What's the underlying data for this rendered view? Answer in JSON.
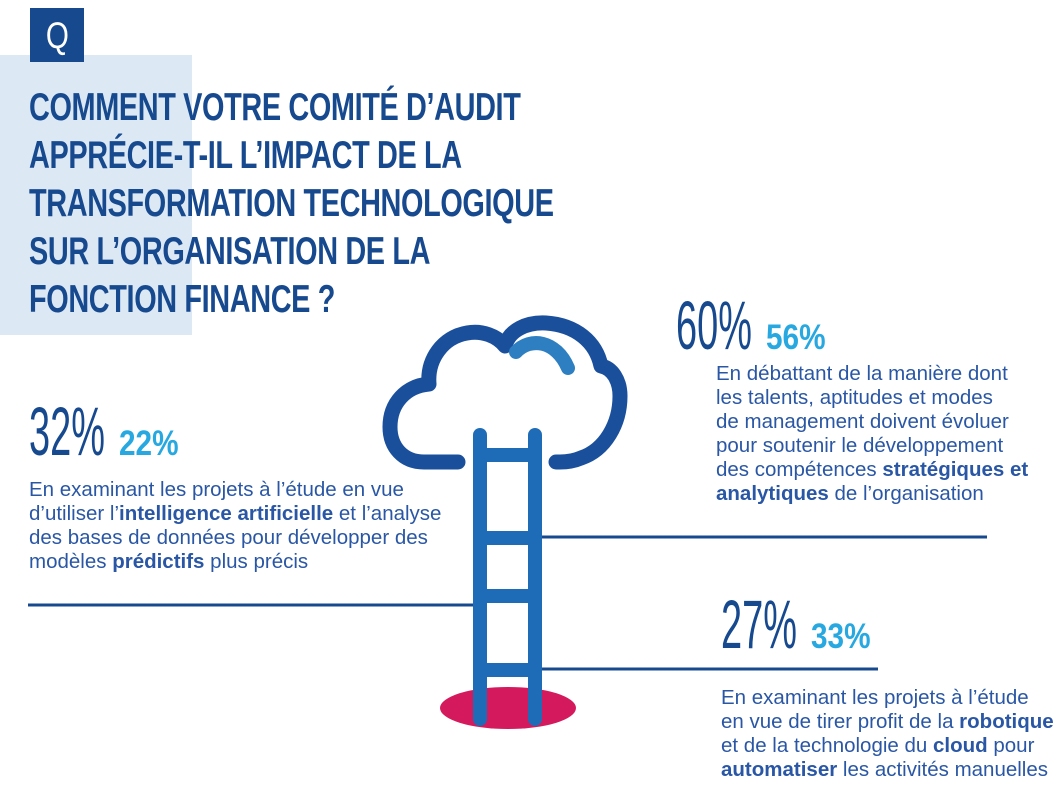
{
  "colors": {
    "dark_blue": "#17498f",
    "body_blue": "#2a57a5",
    "cyan": "#28a8e0",
    "ladder_blue": "#1e6cb8",
    "cloud_blue": "#1a4f9c",
    "arc_blue": "#2e7fc2",
    "hole_red": "#d41a5c",
    "band_blue": "#dce9f5"
  },
  "q_badge": {
    "label": "Q"
  },
  "title": {
    "lines": [
      "COMMENT VOTRE COMITÉ D’AUDIT",
      "APPRÉCIE-T-IL L’IMPACT DE LA",
      "TRANSFORMATION TECHNOLOGIQUE",
      "SUR L’ORGANISATION DE LA",
      "FONCTION FINANCE ?"
    ]
  },
  "icons": {
    "cloud": "cloud-icon",
    "ladder": "ladder-icon",
    "hole": "ground-hole"
  },
  "stats": [
    {
      "main": "32%",
      "sub": "22%",
      "lines": [
        [
          {
            "t": "En examinant les projets à l’étude en vue",
            "b": false
          }
        ],
        [
          {
            "t": "d’utiliser l’",
            "b": false
          },
          {
            "t": "intelligence artificielle",
            "b": true
          },
          {
            "t": " et l’analyse",
            "b": false
          }
        ],
        [
          {
            "t": "des bases de données pour développer des",
            "b": false
          }
        ],
        [
          {
            "t": "modèles ",
            "b": false
          },
          {
            "t": "prédictifs",
            "b": true
          },
          {
            "t": " plus précis",
            "b": false
          }
        ]
      ]
    },
    {
      "main": "60%",
      "sub": "56%",
      "lines": [
        [
          {
            "t": "En débattant de la manière dont",
            "b": false
          }
        ],
        [
          {
            "t": "les talents, aptitudes et modes",
            "b": false
          }
        ],
        [
          {
            "t": "de management doivent évoluer",
            "b": false
          }
        ],
        [
          {
            "t": "pour soutenir le développement",
            "b": false
          }
        ],
        [
          {
            "t": "des compétences ",
            "b": false
          },
          {
            "t": "stratégiques et",
            "b": true
          }
        ],
        [
          {
            "t": "analytiques",
            "b": true
          },
          {
            "t": " de l’organisation",
            "b": false
          }
        ]
      ]
    },
    {
      "main": "27%",
      "sub": "33%",
      "lines": [
        [
          {
            "t": "En examinant les projets à l’étude",
            "b": false
          }
        ],
        [
          {
            "t": "en vue de tirer profit de la ",
            "b": false
          },
          {
            "t": "robotique",
            "b": true
          }
        ],
        [
          {
            "t": "et de la technologie du ",
            "b": false
          },
          {
            "t": "cloud",
            "b": true
          },
          {
            "t": " pour",
            "b": false
          }
        ],
        [
          {
            "t": "automatiser",
            "b": true
          },
          {
            "t": " les activités manuelles",
            "b": false
          }
        ]
      ]
    }
  ]
}
